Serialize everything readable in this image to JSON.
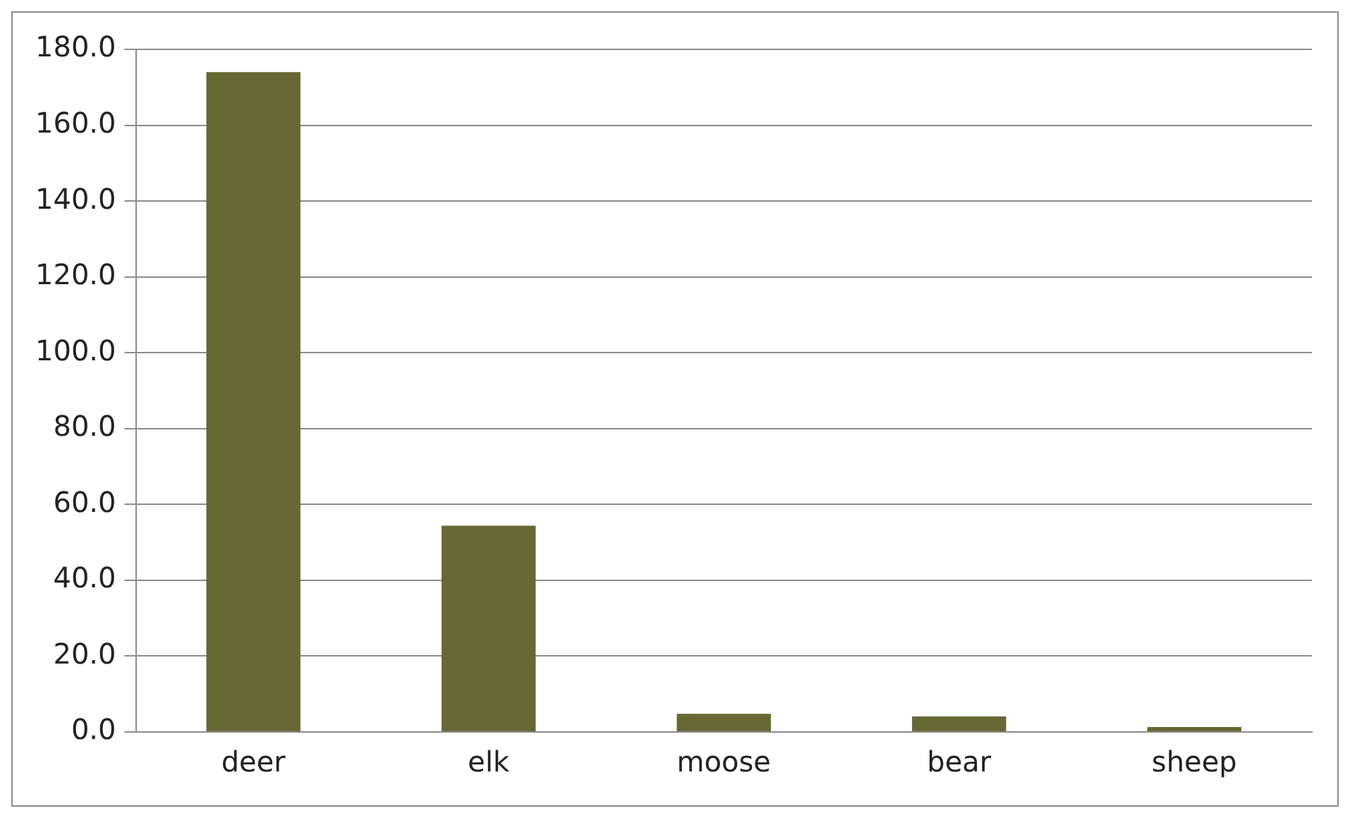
{
  "chart_data": {
    "type": "bar",
    "categories": [
      "deer",
      "elk",
      "moose",
      "bear",
      "sheep"
    ],
    "values": [
      174,
      54.4,
      4.8,
      4.1,
      1.3
    ],
    "color": "#676834",
    "ylim": [
      0,
      180
    ],
    "yticks": [
      {
        "value": 0,
        "label": "0.0"
      },
      {
        "value": 20,
        "label": "20.0"
      },
      {
        "value": 40,
        "label": "40.0"
      },
      {
        "value": 60,
        "label": "60.0"
      },
      {
        "value": 80,
        "label": "80.0"
      },
      {
        "value": 100,
        "label": "100.0"
      },
      {
        "value": 120,
        "label": "120.0"
      },
      {
        "value": 140,
        "label": "140.0"
      },
      {
        "value": 160,
        "label": "160.0"
      },
      {
        "value": 180,
        "label": "180.0"
      }
    ],
    "grid": "y",
    "legend": false
  }
}
